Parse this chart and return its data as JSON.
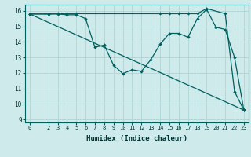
{
  "xlabel": "Humidex (Indice chaleur)",
  "bg_color": "#ceeaea",
  "line_color": "#006060",
  "grid_color": "#afd4d4",
  "xlim": [
    -0.5,
    23.5
  ],
  "ylim": [
    8.8,
    16.4
  ],
  "yticks": [
    9,
    10,
    11,
    12,
    13,
    14,
    15,
    16
  ],
  "xticks": [
    0,
    2,
    3,
    4,
    5,
    6,
    7,
    8,
    9,
    10,
    11,
    12,
    13,
    14,
    15,
    16,
    17,
    18,
    19,
    20,
    21,
    22,
    23
  ],
  "series": [
    {
      "x": [
        0,
        2,
        3,
        4,
        5,
        6,
        7,
        8,
        9,
        10,
        11,
        12,
        13,
        14,
        15,
        16,
        17,
        18,
        19,
        20,
        21,
        22,
        23
      ],
      "y": [
        15.8,
        15.8,
        15.8,
        15.75,
        15.75,
        15.5,
        13.65,
        13.8,
        12.5,
        11.95,
        12.2,
        12.1,
        12.85,
        13.85,
        14.55,
        14.55,
        14.3,
        15.5,
        16.1,
        14.95,
        14.8,
        13.0,
        9.6
      ]
    },
    {
      "x": [
        0,
        2,
        3,
        4,
        5,
        14,
        15,
        16,
        17,
        18,
        19,
        21,
        22,
        23
      ],
      "y": [
        15.8,
        15.8,
        15.82,
        15.82,
        15.82,
        15.82,
        15.82,
        15.82,
        15.82,
        15.82,
        16.15,
        15.82,
        10.8,
        9.6
      ]
    },
    {
      "x": [
        0,
        23
      ],
      "y": [
        15.8,
        9.6
      ]
    }
  ]
}
